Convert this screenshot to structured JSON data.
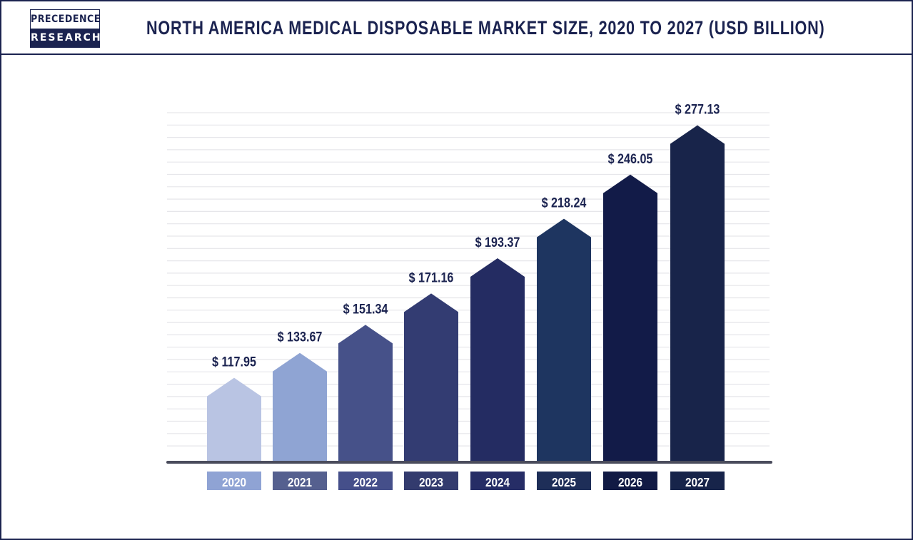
{
  "logo": {
    "top": "PRECEDENCE",
    "bottom": "RESEARCH"
  },
  "chart_data": {
    "type": "bar",
    "title": "NORTH AMERICA MEDICAL DISPOSABLE MARKET  SIZE, 2020 TO 2027 (USD BILLION)",
    "categories": [
      "2020",
      "2021",
      "2022",
      "2023",
      "2024",
      "2025",
      "2026",
      "2027"
    ],
    "values": [
      117.95,
      133.67,
      151.34,
      171.16,
      193.37,
      218.24,
      246.05,
      277.13
    ],
    "data_labels": [
      "$ 117.95",
      "$ 133.67",
      "$ 151.34",
      "$ 171.16",
      "$ 193.37",
      "$ 218.24",
      "$ 246.05",
      "$ 277.13"
    ],
    "bar_colors": [
      "#b9c4e3",
      "#8fa4d3",
      "#465189",
      "#333c72",
      "#242c62",
      "#1e3560",
      "#121b48",
      "#18244a"
    ],
    "label_colors": [
      "#8fa3d4",
      "#55608f",
      "#454f8a",
      "#333b6e",
      "#262d66",
      "#1e2e58",
      "#111a44",
      "#17244a"
    ],
    "grid": true,
    "legend": "none"
  }
}
